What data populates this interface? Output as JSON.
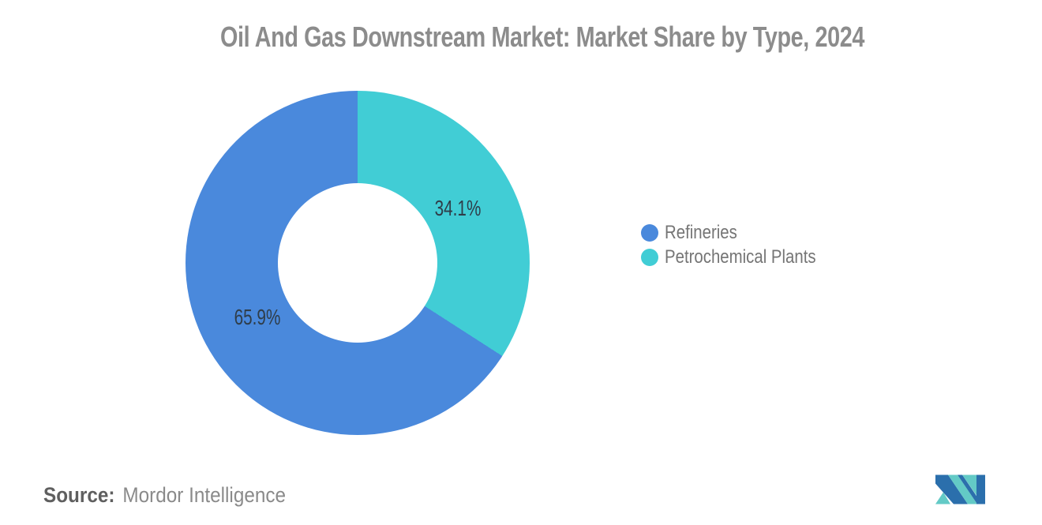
{
  "title": "Oil And Gas Downstream Market: Market Share by Type, 2024",
  "chart_data": {
    "type": "pie",
    "donut": true,
    "title": "Oil And Gas Downstream Market: Market Share by Type, 2024",
    "start_angle_deg": 0,
    "direction": "clockwise",
    "series": [
      {
        "name": "Petrochemical Plants",
        "value": 34.1,
        "label": "34.1%",
        "color": "#41CDD5"
      },
      {
        "name": "Refineries",
        "value": 65.9,
        "label": "65.9%",
        "color": "#4A89DC"
      }
    ],
    "legend_position": "right",
    "labels_color": "#2F3D49",
    "label_radius_px": 145
  },
  "legend": {
    "items": [
      {
        "label": "Refineries",
        "color": "#4A89DC"
      },
      {
        "label": "Petrochemical Plants",
        "color": "#41CDD5"
      }
    ]
  },
  "source": {
    "label": "Source:",
    "value": "Mordor Intelligence"
  },
  "logo": {
    "name": "mordor-intelligence-logo",
    "teal": "#63CAC6",
    "blue": "#2B6FAC"
  }
}
